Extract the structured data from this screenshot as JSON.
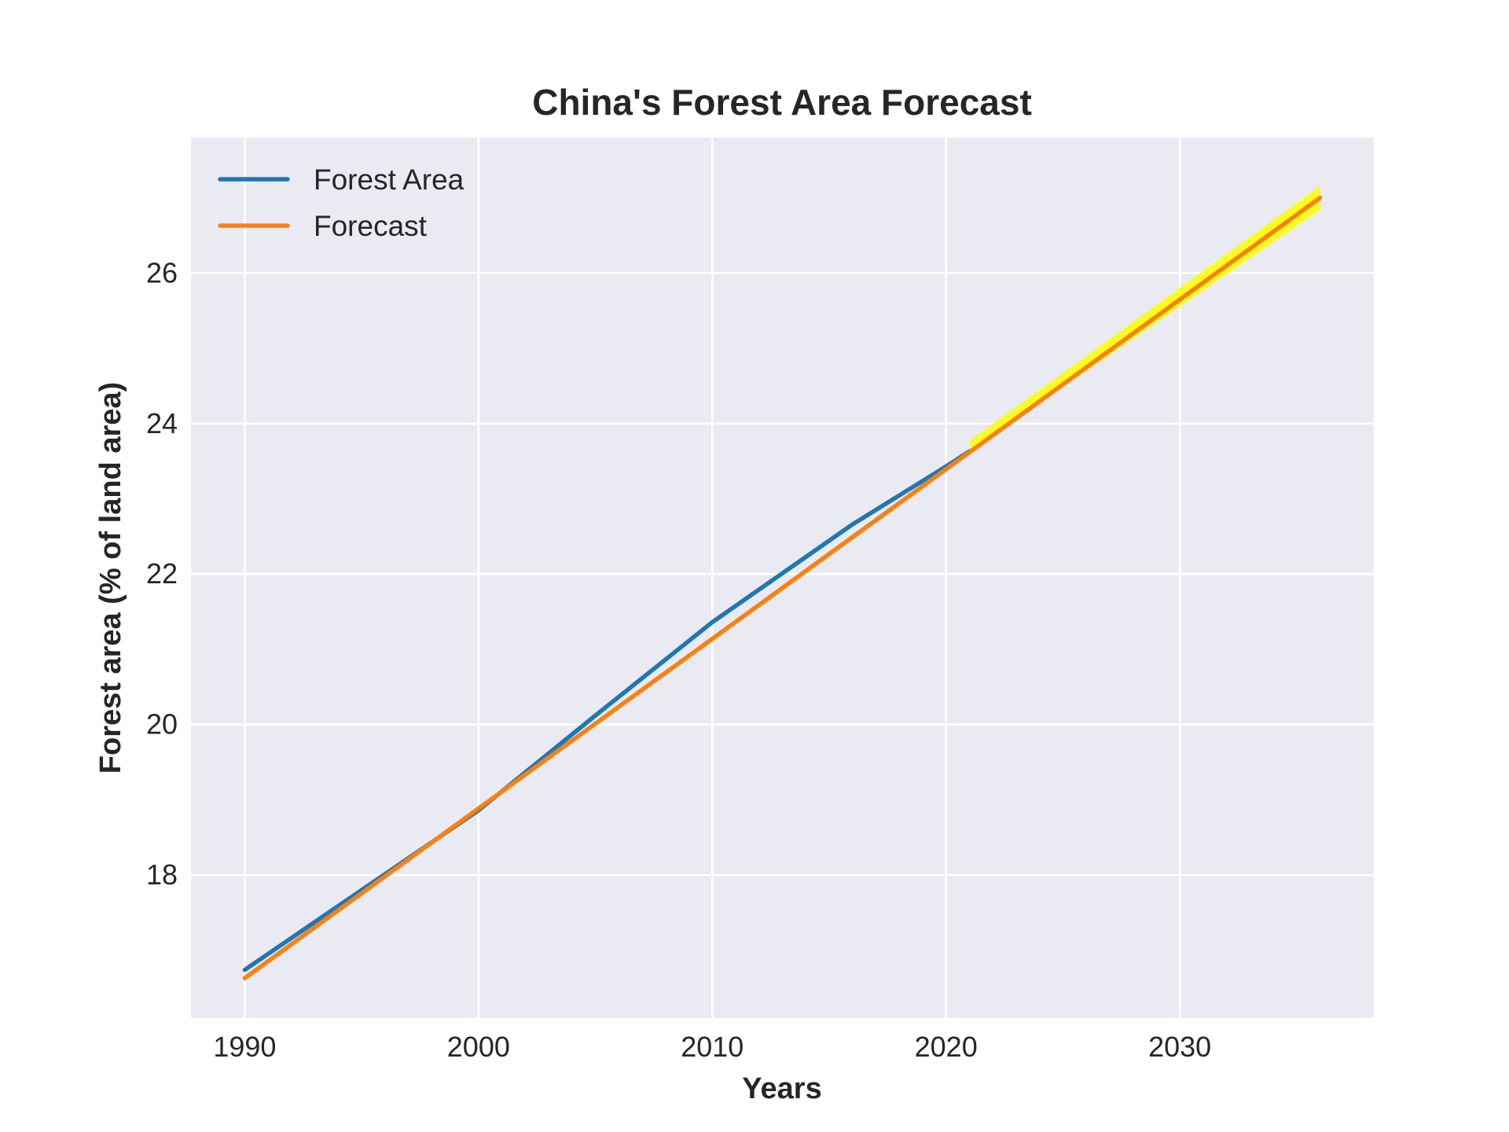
{
  "chart_data": {
    "type": "line",
    "title": "China's Forest Area Forecast",
    "xlabel": "Years",
    "ylabel": "Forest area (% of land area)",
    "xlim": [
      1987.7,
      2038.3
    ],
    "ylim": [
      16.1,
      27.8
    ],
    "xticks": [
      1990,
      2000,
      2010,
      2020,
      2030
    ],
    "yticks": [
      18,
      20,
      22,
      24,
      26
    ],
    "grid": true,
    "legend_position": "top-left",
    "background": "#eaeaf2",
    "series": [
      {
        "name": "Forest Area",
        "color": "#1f77b4",
        "x": [
          1990,
          2000,
          2005,
          2010,
          2016,
          2020,
          2021
        ],
        "y": [
          16.74,
          18.86,
          20.12,
          21.36,
          22.66,
          23.43,
          23.63
        ]
      },
      {
        "name": "Forecast",
        "color": "#ff7f0e",
        "x": [
          1990,
          2036
        ],
        "y": [
          16.63,
          27.0
        ]
      }
    ],
    "confidence_band": {
      "color": "#ffff00",
      "x": [
        2021,
        2036
      ],
      "lower": [
        23.63,
        26.84
      ],
      "upper": [
        23.77,
        27.16
      ]
    }
  }
}
